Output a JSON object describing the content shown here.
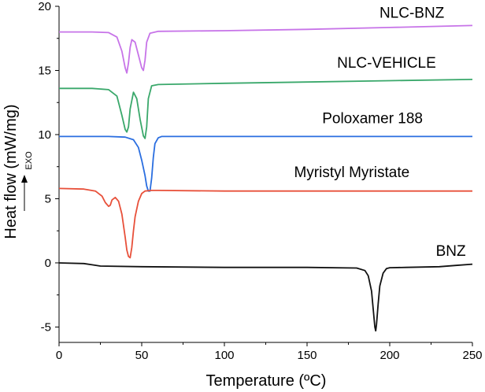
{
  "chart_data": {
    "type": "line",
    "title": "",
    "xlabel": "Temperature (ºC)",
    "ylabel": "Heat flow (mW/mg)",
    "exo_label": "EXO",
    "xlim": [
      0,
      250
    ],
    "ylim": [
      -6.2,
      20
    ],
    "xticks": [
      0,
      50,
      100,
      150,
      200,
      250
    ],
    "yticks": [
      -5,
      0,
      5,
      10,
      15,
      20
    ],
    "xtick_labels": [
      "0",
      "50",
      "100",
      "150",
      "200",
      "250"
    ],
    "ytick_labels": [
      "-5",
      "0",
      "5",
      "10",
      "15",
      "20"
    ],
    "grid": false,
    "series": [
      {
        "name": "NLC-BNZ",
        "color": "#c774e8",
        "label_at": [
          233,
          19.1
        ],
        "x": [
          0,
          20,
          30,
          35,
          38,
          40,
          41,
          42,
          43,
          44,
          46,
          48,
          50,
          51,
          52,
          53,
          55,
          60,
          100,
          150,
          200,
          250
        ],
        "y": [
          18.0,
          18.0,
          17.95,
          17.6,
          16.5,
          15.2,
          14.8,
          15.6,
          16.8,
          17.4,
          17.2,
          16.2,
          15.2,
          15.0,
          15.8,
          17.2,
          17.9,
          18.05,
          18.1,
          18.2,
          18.35,
          18.5
        ]
      },
      {
        "name": "NLC-VEHICLE",
        "color": "#3aa86b",
        "label_at": [
          228,
          15.2
        ],
        "x": [
          0,
          20,
          30,
          35,
          38,
          40,
          41,
          42,
          43,
          45,
          47,
          49,
          51,
          52,
          53,
          54,
          56,
          60,
          100,
          150,
          200,
          250
        ],
        "y": [
          13.6,
          13.6,
          13.5,
          13.0,
          11.5,
          10.4,
          10.2,
          10.6,
          12.0,
          13.3,
          12.8,
          11.2,
          9.9,
          9.7,
          10.6,
          12.8,
          13.8,
          13.9,
          14.0,
          14.1,
          14.2,
          14.3
        ]
      },
      {
        "name": "Poloxamer 188",
        "color": "#2a6ee0",
        "label_at": [
          220,
          10.9
        ],
        "x": [
          0,
          30,
          40,
          45,
          48,
          50,
          52,
          53,
          54,
          55,
          56,
          57,
          58,
          60,
          62,
          65,
          100,
          150,
          200,
          250
        ],
        "y": [
          9.85,
          9.85,
          9.8,
          9.6,
          9.0,
          8.0,
          6.8,
          6.0,
          5.6,
          5.6,
          6.6,
          8.2,
          9.3,
          9.75,
          9.85,
          9.85,
          9.85,
          9.85,
          9.85,
          9.85
        ]
      },
      {
        "name": "Myristyl Myristate",
        "color": "#e8503a",
        "label_at": [
          212,
          6.7
        ],
        "x": [
          0,
          15,
          22,
          26,
          28,
          30,
          31,
          32,
          34,
          36,
          38,
          40,
          41,
          42,
          43,
          44,
          45,
          46,
          48,
          50,
          52,
          56,
          60,
          100,
          150,
          200,
          250
        ],
        "y": [
          5.8,
          5.75,
          5.6,
          5.2,
          4.7,
          4.4,
          4.5,
          4.9,
          5.1,
          4.8,
          3.8,
          2.0,
          1.0,
          0.5,
          0.4,
          1.2,
          2.5,
          3.6,
          4.8,
          5.4,
          5.6,
          5.65,
          5.65,
          5.6,
          5.6,
          5.6,
          5.6
        ]
      },
      {
        "name": "BNZ",
        "color": "#111111",
        "label_at": [
          246,
          0.55
        ],
        "x": [
          0,
          15,
          20,
          25,
          50,
          100,
          150,
          180,
          185,
          187,
          189,
          190,
          191,
          191.5,
          192,
          193,
          194,
          196,
          198,
          200,
          210,
          230,
          240,
          250
        ],
        "y": [
          0.0,
          -0.05,
          -0.15,
          -0.25,
          -0.3,
          -0.35,
          -0.35,
          -0.4,
          -0.6,
          -1.0,
          -2.2,
          -3.6,
          -5.0,
          -5.3,
          -4.8,
          -3.2,
          -1.8,
          -0.8,
          -0.45,
          -0.38,
          -0.35,
          -0.3,
          -0.2,
          -0.1
        ]
      }
    ]
  }
}
